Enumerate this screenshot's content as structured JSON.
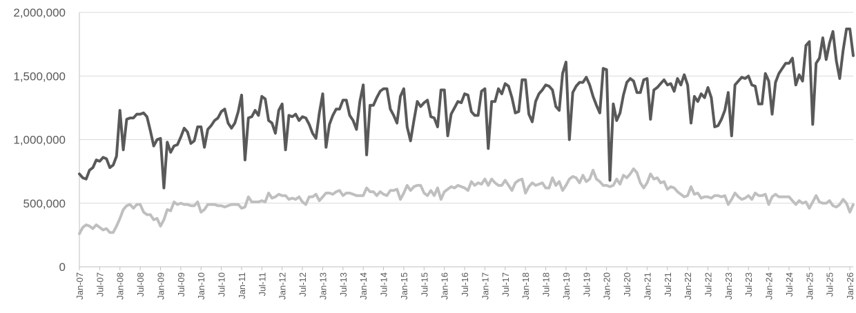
{
  "chart_data": {
    "type": "line",
    "title": "",
    "xlabel": "",
    "ylabel": "",
    "ylim": [
      0,
      2000000
    ],
    "yticks": [
      {
        "value": 0,
        "label": "0"
      },
      {
        "value": 500000,
        "label": "500,000"
      },
      {
        "value": 1000000,
        "label": "1,000,000"
      },
      {
        "value": 1500000,
        "label": "1,500,000"
      },
      {
        "value": 2000000,
        "label": "2,000,000"
      }
    ],
    "x_start": "2007-01",
    "x_end": "2026-02",
    "xticks": [
      "Jan-07",
      "Jul-07",
      "Jan-08",
      "Jul-08",
      "Jan-09",
      "Jul-09",
      "Jan-10",
      "Jul-10",
      "Jan-11",
      "Jul-11",
      "Jan-12",
      "Jul-12",
      "Jan-13",
      "Jul-13",
      "Jan-14",
      "Jul-14",
      "Jan-15",
      "Jul-15",
      "Jan-16",
      "Jul-16",
      "Jan-17",
      "Jul-17",
      "Jan-18",
      "Jul-18",
      "Jan-19",
      "Jul-19",
      "Jan-20",
      "Jul-20",
      "Jan-21",
      "Jul-21",
      "Jan-22",
      "Jul-22",
      "Jan-23",
      "Jul-23",
      "Jan-24",
      "Jul-24",
      "Jan-25",
      "Jul-25",
      "Jan-26"
    ],
    "grid": true,
    "legend": "none",
    "series": [
      {
        "color": "#595959",
        "values": [
          730000,
          700000,
          690000,
          760000,
          780000,
          840000,
          830000,
          860000,
          850000,
          780000,
          800000,
          870000,
          1230000,
          920000,
          1160000,
          1170000,
          1170000,
          1200000,
          1200000,
          1210000,
          1180000,
          1070000,
          950000,
          1000000,
          1010000,
          620000,
          980000,
          900000,
          950000,
          960000,
          1020000,
          1090000,
          1060000,
          970000,
          990000,
          1100000,
          1100000,
          940000,
          1080000,
          1110000,
          1150000,
          1170000,
          1220000,
          1240000,
          1130000,
          1090000,
          1130000,
          1220000,
          1350000,
          840000,
          1170000,
          1180000,
          1230000,
          1190000,
          1340000,
          1320000,
          1150000,
          1130000,
          1050000,
          1230000,
          1280000,
          920000,
          1190000,
          1180000,
          1200000,
          1150000,
          1180000,
          1170000,
          1120000,
          1050000,
          1010000,
          1210000,
          1360000,
          940000,
          1120000,
          1190000,
          1240000,
          1240000,
          1310000,
          1310000,
          1190000,
          1150000,
          1080000,
          1300000,
          1430000,
          880000,
          1270000,
          1270000,
          1330000,
          1380000,
          1400000,
          1400000,
          1240000,
          1190000,
          1130000,
          1340000,
          1400000,
          1100000,
          990000,
          1150000,
          1300000,
          1260000,
          1290000,
          1310000,
          1180000,
          1170000,
          1100000,
          1390000,
          1390000,
          1030000,
          1200000,
          1250000,
          1300000,
          1290000,
          1360000,
          1350000,
          1220000,
          1190000,
          1190000,
          1380000,
          1400000,
          930000,
          1300000,
          1300000,
          1400000,
          1360000,
          1440000,
          1420000,
          1330000,
          1210000,
          1220000,
          1470000,
          1470000,
          1200000,
          1140000,
          1300000,
          1360000,
          1390000,
          1430000,
          1420000,
          1390000,
          1260000,
          1230000,
          1520000,
          1610000,
          1000000,
          1370000,
          1420000,
          1450000,
          1450000,
          1490000,
          1430000,
          1340000,
          1270000,
          1210000,
          1560000,
          1550000,
          680000,
          1280000,
          1150000,
          1210000,
          1350000,
          1450000,
          1480000,
          1460000,
          1370000,
          1370000,
          1470000,
          1480000,
          1160000,
          1390000,
          1410000,
          1440000,
          1470000,
          1430000,
          1440000,
          1380000,
          1480000,
          1430000,
          1510000,
          1430000,
          1130000,
          1340000,
          1300000,
          1360000,
          1330000,
          1410000,
          1330000,
          1100000,
          1110000,
          1160000,
          1230000,
          1370000,
          1030000,
          1430000,
          1460000,
          1490000,
          1480000,
          1500000,
          1430000,
          1420000,
          1280000,
          1280000,
          1520000,
          1460000,
          1200000,
          1450000,
          1520000,
          1560000,
          1600000,
          1600000,
          1640000,
          1430000,
          1510000,
          1460000,
          1740000,
          1770000,
          1120000,
          1600000,
          1640000,
          1800000,
          1630000,
          1760000,
          1850000,
          1620000,
          1480000,
          1700000,
          1870000,
          1870000,
          1660000
        ]
      },
      {
        "color": "#bfbfbf",
        "values": [
          260000,
          310000,
          330000,
          320000,
          300000,
          330000,
          310000,
          290000,
          300000,
          270000,
          270000,
          320000,
          380000,
          450000,
          480000,
          490000,
          460000,
          490000,
          490000,
          430000,
          410000,
          410000,
          370000,
          380000,
          320000,
          370000,
          450000,
          440000,
          510000,
          490000,
          500000,
          490000,
          490000,
          480000,
          480000,
          510000,
          430000,
          450000,
          490000,
          490000,
          490000,
          480000,
          480000,
          470000,
          480000,
          490000,
          490000,
          490000,
          460000,
          470000,
          550000,
          510000,
          510000,
          510000,
          520000,
          510000,
          580000,
          540000,
          550000,
          570000,
          560000,
          560000,
          530000,
          540000,
          530000,
          550000,
          510000,
          490000,
          550000,
          550000,
          570000,
          520000,
          550000,
          580000,
          580000,
          570000,
          590000,
          600000,
          560000,
          580000,
          580000,
          570000,
          560000,
          560000,
          560000,
          620000,
          590000,
          590000,
          560000,
          590000,
          570000,
          560000,
          600000,
          600000,
          610000,
          530000,
          580000,
          640000,
          600000,
          630000,
          640000,
          640000,
          580000,
          560000,
          600000,
          560000,
          620000,
          530000,
          590000,
          610000,
          630000,
          620000,
          640000,
          630000,
          620000,
          600000,
          670000,
          640000,
          660000,
          650000,
          690000,
          640000,
          690000,
          660000,
          640000,
          640000,
          680000,
          640000,
          600000,
          660000,
          680000,
          690000,
          580000,
          630000,
          660000,
          640000,
          650000,
          660000,
          620000,
          620000,
          700000,
          640000,
          670000,
          600000,
          640000,
          690000,
          710000,
          700000,
          660000,
          720000,
          670000,
          690000,
          760000,
          690000,
          670000,
          640000,
          640000,
          630000,
          640000,
          690000,
          650000,
          720000,
          700000,
          730000,
          770000,
          740000,
          660000,
          620000,
          660000,
          730000,
          690000,
          700000,
          660000,
          670000,
          610000,
          630000,
          620000,
          590000,
          570000,
          550000,
          560000,
          630000,
          570000,
          580000,
          540000,
          550000,
          550000,
          540000,
          560000,
          560000,
          550000,
          560000,
          490000,
          530000,
          580000,
          550000,
          530000,
          540000,
          560000,
          530000,
          580000,
          560000,
          560000,
          570000,
          490000,
          550000,
          570000,
          550000,
          550000,
          550000,
          550000,
          520000,
          490000,
          520000,
          500000,
          510000,
          460000,
          510000,
          560000,
          510000,
          500000,
          500000,
          520000,
          480000,
          470000,
          490000,
          530000,
          500000,
          430000,
          490000
        ]
      }
    ]
  }
}
